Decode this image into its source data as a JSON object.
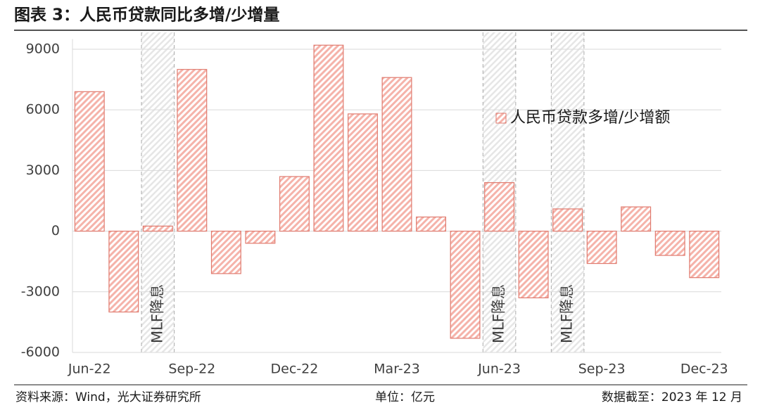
{
  "chart_data": {
    "type": "bar",
    "title": "图表 3：人民币贷款同比多增/少增量",
    "categories": [
      "Jun-22",
      null,
      null,
      "Sep-22",
      null,
      null,
      "Dec-22",
      null,
      null,
      "Mar-23",
      null,
      null,
      "Jun-23",
      null,
      null,
      "Sep-23",
      null,
      null,
      "Dec-23"
    ],
    "series": [
      {
        "name": "人民币贷款多增/少增额",
        "color": "#e07a6e",
        "values": [
          6900,
          -4000,
          250,
          8000,
          -2100,
          -600,
          2700,
          9200,
          5800,
          7600,
          700,
          -5300,
          2400,
          -3300,
          1100,
          -1600,
          1200,
          -1200,
          -2300
        ]
      }
    ],
    "highlights": [
      null,
      null,
      "MLF降息",
      null,
      null,
      null,
      null,
      null,
      null,
      null,
      null,
      null,
      "MLF降息",
      null,
      "MLF降息",
      null,
      null,
      null,
      null
    ],
    "ylim": [
      -6000,
      9500
    ],
    "yticks": [
      -6000,
      -3000,
      0,
      3000,
      6000,
      9000
    ],
    "grid": true,
    "legend": "right",
    "source": "资料来源：Wind，光大证券研究所",
    "unit": "单位：亿元",
    "date": "数据截至：2023 年 12 月"
  }
}
